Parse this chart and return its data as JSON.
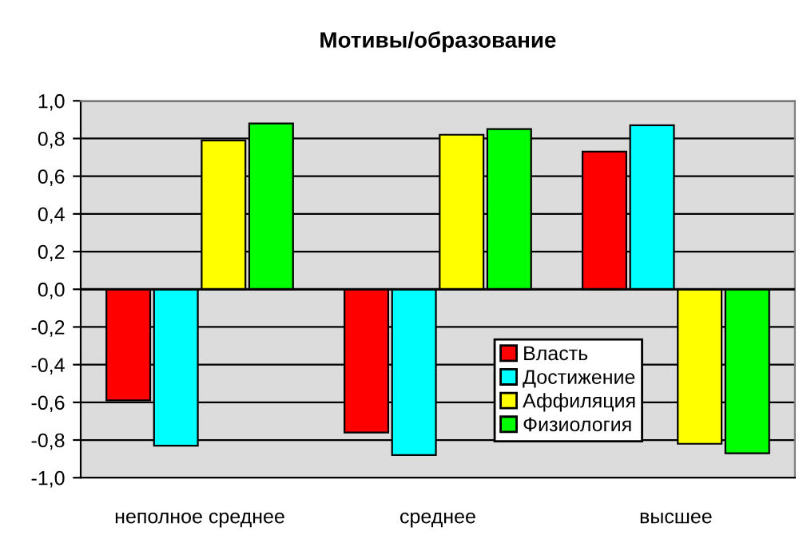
{
  "chart_data": {
    "type": "bar",
    "title": "Мотивы/образование",
    "categories": [
      "неполное среднее",
      "среднее",
      "высшее"
    ],
    "series": [
      {
        "name": "Власть",
        "color": "#ff0000",
        "values": [
          -0.59,
          -0.76,
          0.73
        ]
      },
      {
        "name": "Достижение",
        "color": "#00ffff",
        "values": [
          -0.83,
          -0.88,
          0.87
        ]
      },
      {
        "name": "Аффиляция",
        "color": "#ffff00",
        "values": [
          0.79,
          0.82,
          -0.82
        ]
      },
      {
        "name": "Физиология",
        "color": "#00ff00",
        "values": [
          0.88,
          0.85,
          -0.87
        ]
      }
    ],
    "ylim": [
      -1,
      1
    ],
    "yticks": [
      {
        "value": -1,
        "label": "-1,0"
      },
      {
        "value": -0.8,
        "label": "-0,8"
      },
      {
        "value": -0.6,
        "label": "-0,6"
      },
      {
        "value": -0.4,
        "label": "-0,4"
      },
      {
        "value": -0.2,
        "label": "-0,2"
      },
      {
        "value": 0,
        "label": "0,0"
      },
      {
        "value": 0.2,
        "label": "0,2"
      },
      {
        "value": 0.4,
        "label": "0,4"
      },
      {
        "value": 0.6,
        "label": "0,6"
      },
      {
        "value": 0.8,
        "label": "0,8"
      },
      {
        "value": 1,
        "label": "1,0"
      }
    ],
    "grid": "y",
    "legend": "bottom right"
  }
}
